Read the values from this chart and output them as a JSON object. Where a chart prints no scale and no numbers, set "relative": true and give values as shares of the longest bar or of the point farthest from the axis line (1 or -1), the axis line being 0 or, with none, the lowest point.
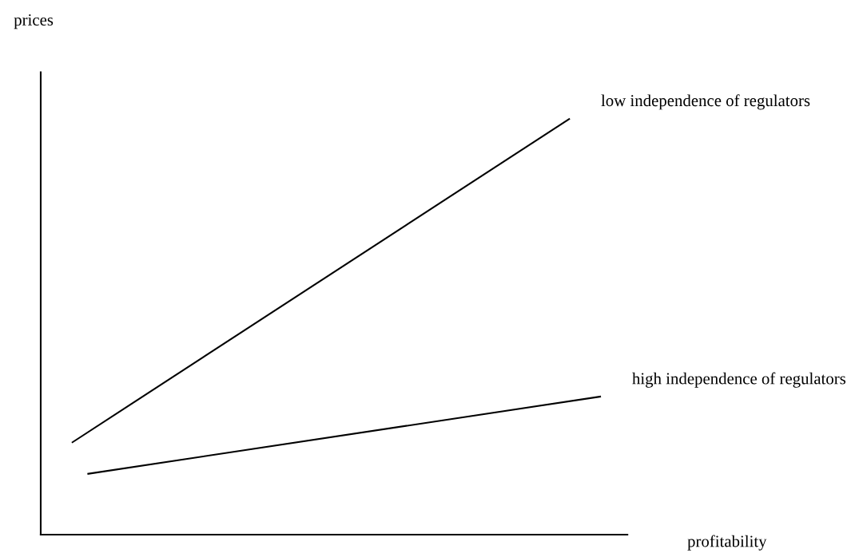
{
  "chart_data": {
    "type": "line",
    "relative": true,
    "xlabel": "profitability",
    "annotations": [
      "prices"
    ],
    "marker": "none",
    "line_style": "solid",
    "categories": [
      null,
      null,
      null,
      null,
      null,
      null,
      null,
      null,
      null,
      null,
      null,
      null,
      null,
      null,
      null,
      null,
      null,
      null,
      null,
      null,
      null,
      null,
      null,
      null,
      null,
      null,
      null,
      null,
      null,
      null,
      null,
      null,
      null,
      null,
      null,
      null,
      null
    ],
    "series": [
      {
        "name": "low independence of regulators",
        "color": "#000000",
        "values": [
          null,
          null,
          0.221,
          null,
          null,
          null,
          null,
          null,
          null,
          null,
          null,
          null,
          null,
          null,
          null,
          null,
          null,
          null,
          null,
          null,
          null,
          null,
          null,
          null,
          null,
          null,
          null,
          null,
          null,
          null,
          null,
          null,
          null,
          null,
          1,
          null,
          null
        ]
      },
      {
        "name": "high independence of regulators",
        "color": "#000000",
        "values": [
          null,
          null,
          null,
          0.146,
          null,
          null,
          null,
          null,
          null,
          null,
          null,
          null,
          null,
          null,
          null,
          null,
          null,
          null,
          null,
          null,
          null,
          null,
          null,
          null,
          null,
          null,
          null,
          null,
          null,
          null,
          null,
          null,
          null,
          null,
          null,
          null,
          0.332
        ]
      }
    ]
  }
}
